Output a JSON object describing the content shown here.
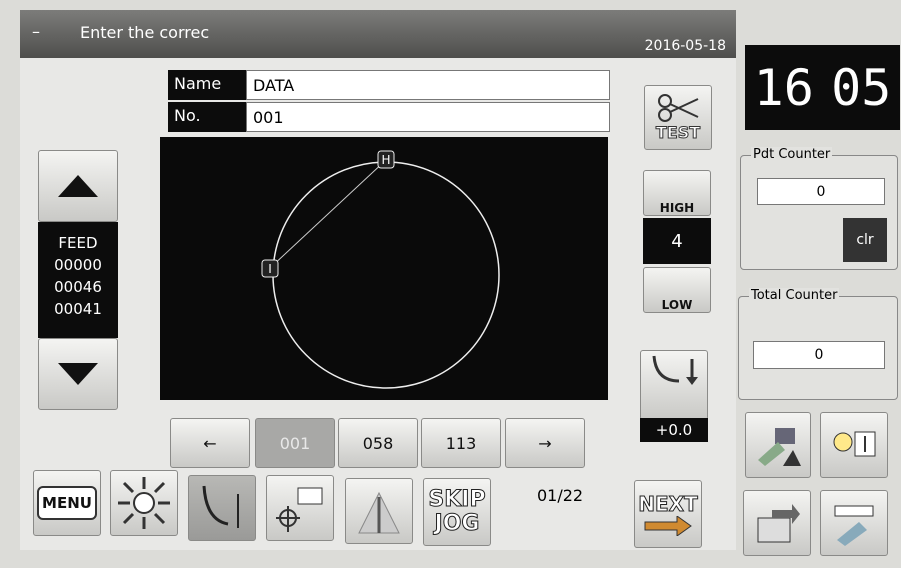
{
  "header": {
    "title": "Enter the correc",
    "date": "2016-05-18"
  },
  "clock": {
    "hour": "16",
    "minute": "05"
  },
  "pattern": {
    "name_label": "Name",
    "name": "DATA",
    "no_label": "No.",
    "no": "001",
    "markers": [
      "H",
      "I"
    ]
  },
  "feed": {
    "label": "FEED",
    "values": [
      "00000",
      "00046",
      "00041"
    ]
  },
  "speed": {
    "test": "TEST",
    "high": "HIGH",
    "level": "4",
    "low": "LOW"
  },
  "offset": "+0.0",
  "counters": {
    "pdt": {
      "title": "Pdt Counter",
      "value": "0",
      "clear": "clr"
    },
    "total": {
      "title": "Total Counter",
      "value": "0"
    }
  },
  "nav": {
    "prev": "←",
    "points": [
      "001",
      "058",
      "113"
    ],
    "next": "→"
  },
  "toolbar": {
    "menu": "MENU",
    "skip": "SKIP",
    "jog": "JOG",
    "page": "01/22",
    "next": "NEXT"
  }
}
